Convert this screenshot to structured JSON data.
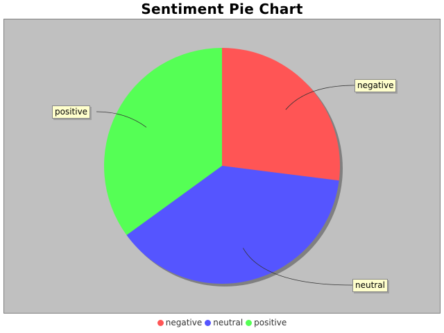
{
  "chart_data": {
    "type": "pie",
    "title": "Sentiment Pie Chart",
    "categories": [
      "negative",
      "neutral",
      "positive"
    ],
    "values": [
      27,
      38,
      35
    ],
    "colors": [
      "#ff5555",
      "#5555ff",
      "#55ff55"
    ],
    "legend_position": "bottom",
    "background": "#c0c0c0"
  }
}
